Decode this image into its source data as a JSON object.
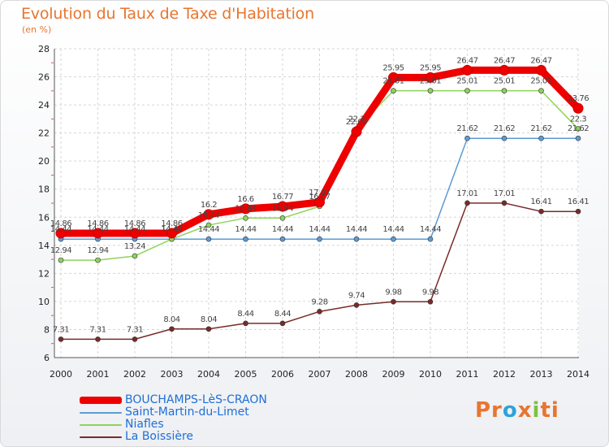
{
  "header": {
    "title": "Evolution du Taux de Taxe d'Habitation",
    "unit": "(en %)"
  },
  "brand": {
    "logo_parts": [
      {
        "text": "Pr",
        "color": "#e8752f"
      },
      {
        "text": "o",
        "color": "#2ea3d8"
      },
      {
        "text": "x",
        "color": "#e8752f"
      },
      {
        "text": "i",
        "color": "#7cc242"
      },
      {
        "text": "ti",
        "color": "#e8752f"
      }
    ]
  },
  "chart_data": {
    "type": "line",
    "title": "Evolution du Taux de Taxe d'Habitation",
    "ylabel": "(en %)",
    "x": [
      "2000",
      "2001",
      "2002",
      "2003",
      "2004",
      "2005",
      "2006",
      "2007",
      "2008",
      "2009",
      "2010",
      "2011",
      "2012",
      "2013",
      "2014"
    ],
    "ylim": [
      6,
      28
    ],
    "yticks": [
      6,
      8,
      10,
      12,
      14,
      16,
      18,
      20,
      22,
      24,
      26,
      28
    ],
    "grid": true,
    "legend_position": "bottom-left",
    "series": [
      {
        "name": "BOUCHAMPS-LèS-CRAON",
        "color": "#ee0000",
        "emphasis": true,
        "values": [
          14.86,
          14.86,
          14.86,
          14.86,
          16.2,
          16.6,
          16.77,
          17.07,
          22.09,
          25.95,
          25.95,
          26.47,
          26.47,
          26.47,
          23.76
        ],
        "labels": [
          "14.86",
          "14.86",
          "14.86",
          "14.86",
          "16.2",
          "16.6",
          "16.77",
          "17.07",
          "22.09",
          "25.95",
          "25.95",
          "26.47",
          "26.47",
          "26.47",
          "23.76"
        ]
      },
      {
        "name": "Saint-Martin-du-Limet",
        "color": "#5b9bd5",
        "values": [
          14.44,
          14.44,
          14.44,
          14.44,
          14.44,
          14.44,
          14.44,
          14.44,
          14.44,
          14.44,
          14.44,
          21.62,
          21.62,
          21.62,
          21.62
        ],
        "labels": [
          "14.44",
          "14.44",
          "14.44",
          "14.44",
          "14.44",
          "14.44",
          "14.44",
          "14.44",
          "14.44",
          "14.44",
          "14.44",
          "21.62",
          "21.62",
          "21.62",
          "21.62"
        ]
      },
      {
        "name": "Niafles",
        "color": "#8fd35a",
        "values": [
          12.94,
          12.94,
          13.24,
          14.44,
          15.44,
          15.94,
          15.94,
          16.77,
          22.3,
          25.01,
          25.01,
          25.01,
          25.01,
          25.01,
          22.3
        ],
        "labels": [
          "12.94",
          "12.94",
          "13.24",
          "14.44",
          "15.44",
          "15.94",
          "15.94",
          "16.77",
          "22.3",
          "25.01",
          "25.01",
          "25.01",
          "25.01",
          "25.01",
          "22.3"
        ]
      },
      {
        "name": "La Boissière",
        "color": "#7a2a2a",
        "values": [
          7.31,
          7.31,
          7.31,
          8.04,
          8.04,
          8.44,
          8.44,
          9.28,
          9.74,
          9.98,
          9.98,
          17.01,
          17.01,
          16.41,
          16.41
        ],
        "labels": [
          "7.31",
          "7.31",
          "7.31",
          "8.04",
          "8.04",
          "8.44",
          "8.44",
          "9.28",
          "9.74",
          "9.98",
          "9.98",
          "17.01",
          "17.01",
          "16.41",
          "16.41"
        ]
      }
    ]
  }
}
